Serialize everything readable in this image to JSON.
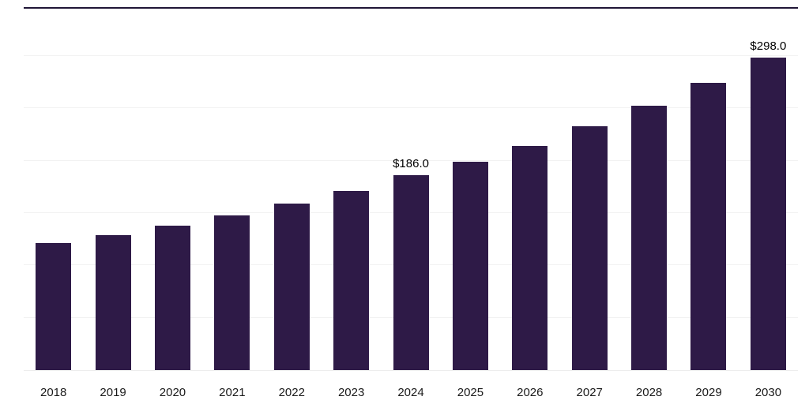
{
  "chart_data": {
    "type": "bar",
    "title": "",
    "xlabel": "",
    "ylabel": "",
    "categories": [
      "2018",
      "2019",
      "2020",
      "2021",
      "2022",
      "2023",
      "2024",
      "2025",
      "2026",
      "2027",
      "2028",
      "2029",
      "2030"
    ],
    "values": [
      121,
      129,
      138,
      148,
      159,
      171,
      186,
      199,
      214,
      233,
      252,
      274,
      298
    ],
    "value_labels": {
      "2024": "$186.0",
      "2030": "$298.0"
    },
    "bar_color": "#2e1a47",
    "top_border_color": "#201636",
    "gridline_color": "#f2f2f2",
    "background": "#ffffff",
    "ylim": [
      0,
      345
    ],
    "grid_step": 50,
    "grid": "horizontal-faint",
    "legend": "none",
    "y_axis_tick_labels": "none"
  }
}
